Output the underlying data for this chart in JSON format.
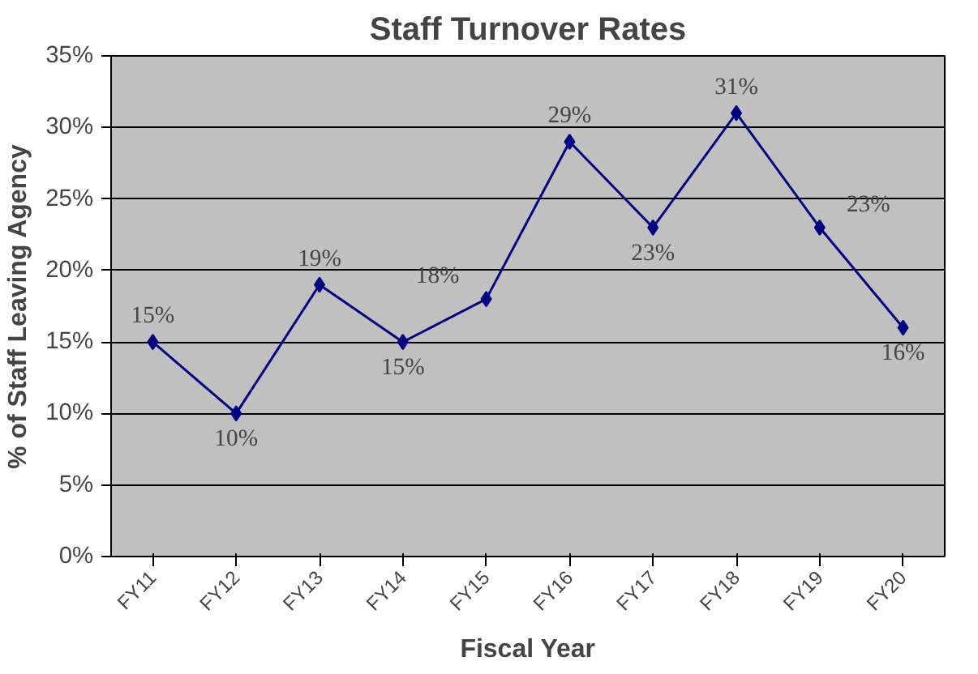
{
  "chart_data": {
    "type": "line",
    "title": "Staff Turnover Rates",
    "xlabel": "Fiscal Year",
    "ylabel": "% of Staff Leaving Agency",
    "categories": [
      "FY11",
      "FY12",
      "FY13",
      "FY14",
      "FY15",
      "FY16",
      "FY17",
      "FY18",
      "FY19",
      "FY20"
    ],
    "series": [
      {
        "color": "#000080",
        "values": [
          15,
          10,
          19,
          15,
          18,
          29,
          23,
          31,
          23,
          16
        ]
      }
    ],
    "value_labels": [
      "15%",
      "10%",
      "19%",
      "15%",
      "18%",
      "29%",
      "23%",
      "31%",
      "23%",
      "16%"
    ],
    "ylim": [
      0,
      35
    ],
    "yticks": [
      {
        "value": 0,
        "label": "0%"
      },
      {
        "value": 5,
        "label": "5%"
      },
      {
        "value": 10,
        "label": "10%"
      },
      {
        "value": 15,
        "label": "15%"
      },
      {
        "value": 20,
        "label": "20%"
      },
      {
        "value": 25,
        "label": "25%"
      },
      {
        "value": 30,
        "label": "30%"
      },
      {
        "value": 35,
        "label": "35%"
      }
    ],
    "grid": "y",
    "marker": "diamond",
    "line_style": "solid"
  }
}
